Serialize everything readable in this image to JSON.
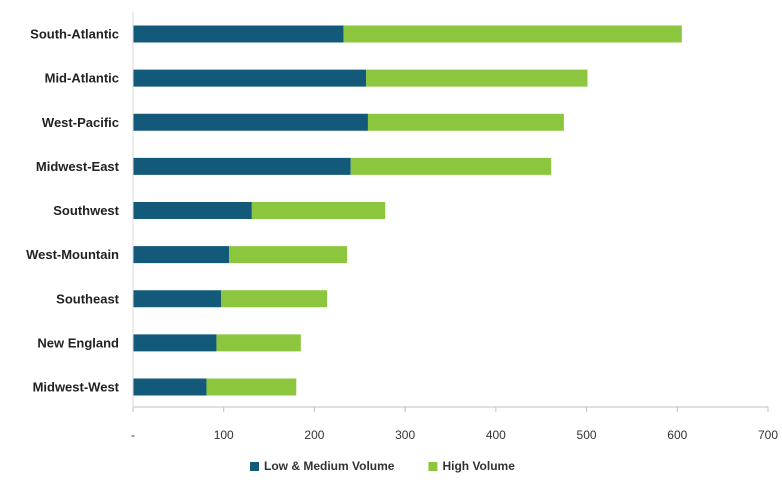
{
  "chart_data": {
    "type": "bar",
    "orientation": "horizontal",
    "stacked": true,
    "categories": [
      "South-Atlantic",
      "Mid-Atlantic",
      "West-Pacific",
      "Midwest-East",
      "Southwest",
      "West-Mountain",
      "Southeast",
      "New England",
      "Midwest-West"
    ],
    "series": [
      {
        "name": "Low & Medium Volume",
        "color": "#135a7a",
        "values": [
          232,
          257,
          259,
          240,
          131,
          106,
          97,
          92,
          81
        ]
      },
      {
        "name": "High Volume",
        "color": "#8cc63f",
        "values": [
          373,
          244,
          216,
          221,
          147,
          130,
          117,
          93,
          99
        ]
      }
    ],
    "xlim": [
      0,
      700
    ],
    "x_ticks": [
      "-",
      "100",
      "200",
      "300",
      "400",
      "500",
      "600",
      "700"
    ],
    "title": "",
    "xlabel": "",
    "ylabel": "",
    "grid": false,
    "legend_position": "bottom"
  }
}
